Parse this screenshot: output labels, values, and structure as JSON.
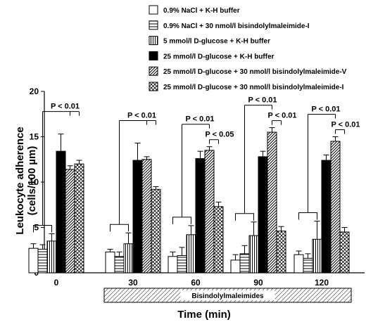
{
  "chart_data": {
    "type": "bar",
    "ylabel_line1": "Leukocyte adherence",
    "ylabel_line2": "(cells/100 µm)",
    "xlabel": "Time (min)",
    "ylim": [
      0,
      20
    ],
    "yticks": [
      "0",
      "5",
      "10",
      "15",
      "20"
    ],
    "categories": [
      "0",
      "30",
      "60",
      "90",
      "120"
    ],
    "series": [
      {
        "name": "0.9% NaCl + K-H buffer",
        "pattern": "white",
        "values": [
          2.7,
          2.3,
          1.8,
          1.4,
          2.0
        ],
        "errors": [
          0.5,
          0.3,
          0.5,
          0.6,
          0.4
        ]
      },
      {
        "name": "0.9% NaCl + 30 nmol/l bisindolylmaleimide-I",
        "pattern": "hstripe",
        "values": [
          2.6,
          1.8,
          1.9,
          2.1,
          1.6
        ],
        "errors": [
          0.5,
          0.5,
          0.9,
          0.9,
          0.5
        ]
      },
      {
        "name": "5 mmol/l D-glucose + K-H buffer",
        "pattern": "vstripe",
        "values": [
          3.5,
          3.2,
          4.2,
          4.1,
          3.7
        ],
        "errors": [
          0.8,
          1.2,
          1.0,
          1.5,
          2.0
        ]
      },
      {
        "name": "25 mmol/l D-glucose + K-H buffer",
        "pattern": "black",
        "values": [
          13.4,
          12.4,
          12.6,
          12.8,
          12.4
        ],
        "errors": [
          1.9,
          1.9,
          0.8,
          0.6,
          0.6
        ]
      },
      {
        "name": "25 mmol/l D-glucose + 30 nmol/l bisindolylmaleimide-V",
        "pattern": "diag",
        "values": [
          11.4,
          12.5,
          13.5,
          15.5,
          14.5
        ],
        "errors": [
          0.4,
          0.3,
          0.4,
          0.5,
          0.5
        ]
      },
      {
        "name": "25 mmol/l D-glucose + 30 nmol/l bisindolylmaleimide-I",
        "pattern": "cross",
        "values": [
          12.0,
          9.2,
          7.3,
          4.6,
          4.5
        ],
        "errors": [
          0.4,
          0.3,
          0.5,
          0.5,
          0.5
        ]
      }
    ],
    "annotations": {
      "p001": "P < 0.01",
      "p005": "P < 0.05",
      "bisindolyl_band": "Bisindolylmaleimides"
    },
    "significance": [
      {
        "category": 0,
        "label": "p001",
        "level": 0,
        "from": 0,
        "targets": [
          4,
          5
        ]
      },
      {
        "category": 1,
        "label": "p001",
        "level": 0,
        "from": 0,
        "targets": [
          4,
          5
        ]
      },
      {
        "category": 2,
        "label": "p001",
        "level": 0,
        "from": 0,
        "targets": [
          4
        ]
      },
      {
        "category": 2,
        "label": "p005",
        "level": 1,
        "from": 4,
        "targets": [
          5
        ]
      },
      {
        "category": 3,
        "label": "p001",
        "level": 0,
        "from": 0,
        "targets": [
          4
        ]
      },
      {
        "category": 3,
        "label": "p001",
        "level": 1,
        "from": 4,
        "targets": [
          5
        ]
      },
      {
        "category": 4,
        "label": "p001",
        "level": 0,
        "from": 0,
        "targets": [
          4
        ]
      },
      {
        "category": 4,
        "label": "p001",
        "level": 1,
        "from": 4,
        "targets": [
          5
        ]
      }
    ],
    "band_categories": [
      1,
      4
    ],
    "legend_position": "top-right",
    "grid": false
  }
}
